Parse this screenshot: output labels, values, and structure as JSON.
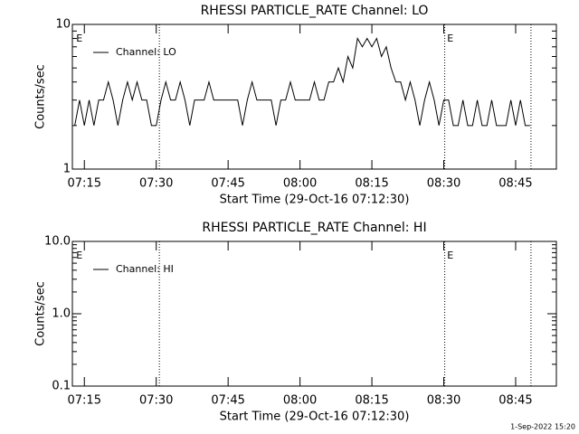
{
  "chart_data": [
    {
      "type": "line",
      "title": "RHESSI PARTICLE_RATE Channel: LO",
      "xlabel": "Start Time (29-Oct-16 07:12:30)",
      "ylabel": "Counts/sec",
      "xlim": [
        432.5,
        533.5
      ],
      "xticks": [
        {
          "value": 435,
          "label": "07:15"
        },
        {
          "value": 450,
          "label": "07:30"
        },
        {
          "value": 465,
          "label": "07:45"
        },
        {
          "value": 480,
          "label": "08:00"
        },
        {
          "value": 495,
          "label": "08:15"
        },
        {
          "value": 510,
          "label": "08:30"
        },
        {
          "value": 525,
          "label": "08:45"
        }
      ],
      "ylim": [
        1,
        10
      ],
      "yticks": [
        1,
        10
      ],
      "log_y": true,
      "legend": "upper left",
      "markers": [
        450.65,
        510.2,
        528.2
      ],
      "annotations": [
        {
          "text": "E",
          "x": 433.3
        },
        {
          "text": "E",
          "x": 510.7
        }
      ],
      "x": [
        433,
        434,
        435,
        436,
        437,
        438,
        439,
        440,
        441,
        442,
        443,
        444,
        445,
        446,
        447,
        448,
        449,
        450,
        451,
        452,
        453,
        454,
        455,
        456,
        457,
        458,
        459,
        460,
        461,
        462,
        463,
        464,
        465,
        466,
        467,
        468,
        469,
        470,
        471,
        472,
        473,
        474,
        475,
        476,
        477,
        478,
        479,
        480,
        481,
        482,
        483,
        484,
        485,
        486,
        487,
        488,
        489,
        490,
        491,
        492,
        493,
        494,
        495,
        496,
        497,
        498,
        499,
        500,
        501,
        502,
        503,
        504,
        505,
        506,
        507,
        508,
        509,
        510,
        511,
        512,
        513,
        514,
        515,
        516,
        517,
        518,
        519,
        520,
        521,
        522,
        523,
        524,
        525,
        526,
        527,
        528
      ],
      "series": [
        {
          "name": "Channel: LO",
          "color": "#000000",
          "values": [
            2,
            3,
            2,
            3,
            2,
            3,
            3,
            4,
            3,
            2,
            3,
            4,
            3,
            4,
            3,
            3,
            2,
            2,
            3,
            4,
            3,
            3,
            4,
            3,
            2,
            3,
            3,
            3,
            4,
            3,
            3,
            3,
            3,
            3,
            3,
            2,
            3,
            4,
            3,
            3,
            3,
            3,
            2,
            3,
            3,
            4,
            3,
            3,
            3,
            3,
            4,
            3,
            3,
            4,
            4,
            5,
            4,
            6,
            5,
            8,
            7,
            8,
            7,
            8,
            6,
            7,
            5,
            4,
            4,
            3,
            4,
            3,
            2,
            3,
            4,
            3,
            2,
            3,
            3,
            2,
            2,
            3,
            2,
            2,
            3,
            2,
            2,
            3,
            2,
            2,
            2,
            3,
            2,
            3,
            2,
            2
          ]
        }
      ]
    },
    {
      "type": "line",
      "title": "RHESSI PARTICLE_RATE Channel: HI",
      "xlabel": "Start Time (29-Oct-16 07:12:30)",
      "ylabel": "Counts/sec",
      "xlim": [
        432.5,
        533.5
      ],
      "xticks": [
        {
          "value": 435,
          "label": "07:15"
        },
        {
          "value": 450,
          "label": "07:30"
        },
        {
          "value": 465,
          "label": "07:45"
        },
        {
          "value": 480,
          "label": "08:00"
        },
        {
          "value": 495,
          "label": "08:15"
        },
        {
          "value": 510,
          "label": "08:30"
        },
        {
          "value": 525,
          "label": "08:45"
        }
      ],
      "ylim": [
        0.1,
        10
      ],
      "yticks": [
        0.1,
        {
          "value": 1,
          "label": "1.0"
        },
        {
          "value": 10,
          "label": "10.0"
        }
      ],
      "log_y": true,
      "legend": "upper left",
      "markers": [
        450.65,
        510.2,
        528.2
      ],
      "annotations": [
        {
          "text": "E",
          "x": 433.3
        },
        {
          "text": "E",
          "x": 510.7
        }
      ],
      "x": [],
      "series": [
        {
          "name": "Channel: HI",
          "color": "#000000",
          "values": []
        }
      ]
    }
  ],
  "footer": "1-Sep-2022 15:20"
}
